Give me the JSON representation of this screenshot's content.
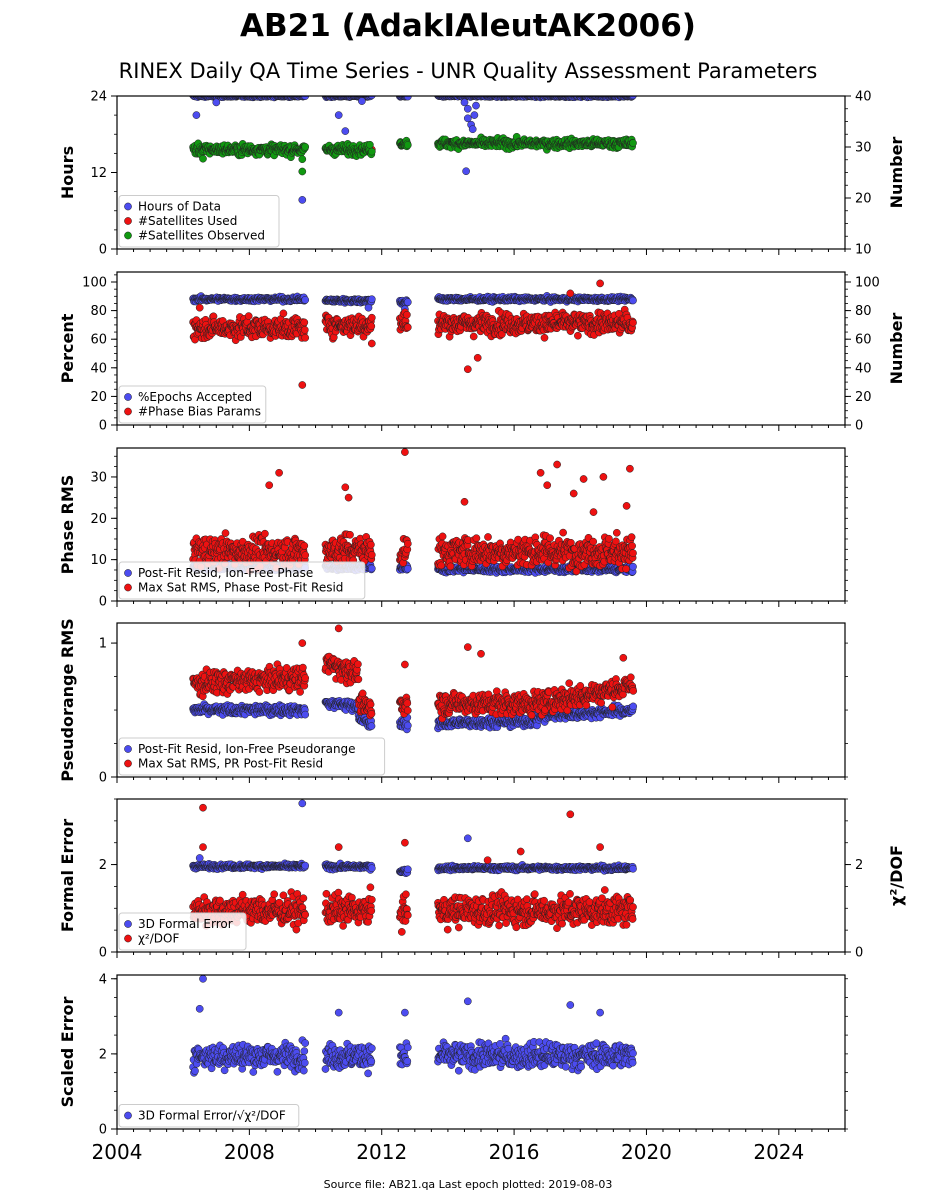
{
  "title": "AB21 (AdakIAleutAK2006)",
  "subtitle": "RINEX Daily QA Time Series - UNR Quality Assessment Parameters",
  "footer": "Source file: AB21.qa Last epoch plotted: 2019-08-03",
  "chart_data": [
    {
      "type": "scatter",
      "panel": "hours",
      "ylabel": "Hours",
      "y2label": "Number",
      "ylim": [
        0,
        24
      ],
      "yticks": [
        0,
        12,
        24
      ],
      "y2lim": [
        10,
        40
      ],
      "y2ticks": [
        10,
        20,
        30,
        40
      ],
      "legend_position": "lower-left",
      "series": [
        {
          "name": "Hours of Data",
          "color": "#4c4cf0",
          "axis": "left",
          "band": [
            [
              2006.3,
              2009.7,
              24,
              0.15
            ],
            [
              2010.3,
              2011.7,
              24,
              0.15
            ],
            [
              2012.55,
              2012.8,
              24,
              0.15
            ],
            [
              2013.7,
              2019.6,
              24,
              0.15
            ]
          ],
          "outliers": [
            [
              2006.4,
              21
            ],
            [
              2007.0,
              23
            ],
            [
              2009.6,
              7.7
            ],
            [
              2010.7,
              21
            ],
            [
              2010.9,
              18.5
            ],
            [
              2011.4,
              23.2
            ],
            [
              2014.5,
              23
            ],
            [
              2014.6,
              22
            ],
            [
              2014.6,
              20.5
            ],
            [
              2014.7,
              19.5
            ],
            [
              2014.75,
              18.8
            ],
            [
              2014.8,
              21
            ],
            [
              2014.85,
              22.5
            ],
            [
              2014.55,
              12.2
            ]
          ]
        },
        {
          "name": "#Satellites Used",
          "color": "#ee1111",
          "axis": "right",
          "band": [],
          "outliers": [
            [
              2011.7,
              29.5
            ]
          ]
        },
        {
          "name": "#Satellites Observed",
          "color": "#119911",
          "axis": "right",
          "band": [
            [
              2006.3,
              2009.7,
              29.5,
              0.8
            ],
            [
              2010.3,
              2011.7,
              29.5,
              0.8
            ],
            [
              2012.55,
              2012.8,
              30.7,
              0.5
            ],
            [
              2013.7,
              2019.6,
              30.7,
              0.7
            ]
          ],
          "outliers": [
            [
              2006.6,
              27.7
            ],
            [
              2009.6,
              27.6
            ],
            [
              2009.6,
              25.2
            ]
          ]
        }
      ]
    },
    {
      "type": "scatter",
      "panel": "percent",
      "ylabel": "Percent",
      "y2label": "Number",
      "ylim": [
        0,
        107
      ],
      "yticks": [
        0,
        20,
        40,
        60,
        80,
        100
      ],
      "y2ticks": [
        0,
        20,
        40,
        60,
        80,
        100
      ],
      "legend_position": "lower-left",
      "series": [
        {
          "name": "%Epochs Accepted",
          "color": "#4c4cf0",
          "axis": "left",
          "band": [
            [
              2006.3,
              2009.7,
              88,
              1.2
            ],
            [
              2010.3,
              2011.7,
              87,
              1.2
            ],
            [
              2012.55,
              2012.8,
              86,
              1.5
            ],
            [
              2013.7,
              2019.6,
              88,
              1.2
            ]
          ],
          "outliers": [
            [
              2011.6,
              82
            ],
            [
              2012.7,
              81
            ]
          ]
        },
        {
          "name": "#Phase Bias Params",
          "color": "#ee1111",
          "axis": "right",
          "band": [
            [
              2006.3,
              2009.7,
              68,
              6
            ],
            [
              2010.3,
              2011.7,
              70,
              6
            ],
            [
              2012.55,
              2012.8,
              72,
              7
            ],
            [
              2013.7,
              2019.6,
              71,
              6
            ]
          ],
          "outliers": [
            [
              2009.6,
              28
            ],
            [
              2014.6,
              39
            ],
            [
              2014.9,
              47
            ],
            [
              2018.6,
              99
            ],
            [
              2017.7,
              92
            ],
            [
              2006.5,
              82
            ],
            [
              2011.7,
              57
            ]
          ]
        }
      ]
    },
    {
      "type": "scatter",
      "panel": "phase-rms",
      "ylabel": "Phase RMS",
      "ylim": [
        0,
        37
      ],
      "yticks": [
        0,
        10,
        20,
        30
      ],
      "legend_position": "lower-left",
      "series": [
        {
          "name": "Post-Fit Resid, Ion-Free Phase",
          "color": "#4c4cf0",
          "axis": "left",
          "band": [
            [
              2006.3,
              2009.7,
              8.2,
              0.6
            ],
            [
              2010.3,
              2011.7,
              8.2,
              0.6
            ],
            [
              2012.55,
              2012.8,
              8.0,
              0.6
            ],
            [
              2013.7,
              2019.6,
              7.7,
              0.6
            ]
          ],
          "outliers": []
        },
        {
          "name": "Max Sat RMS, Phase Post-Fit Resid",
          "color": "#ee1111",
          "axis": "left",
          "band": [
            [
              2006.3,
              2009.7,
              12,
              3
            ],
            [
              2010.3,
              2011.7,
              12.5,
              3
            ],
            [
              2012.55,
              2012.8,
              12,
              3
            ],
            [
              2013.7,
              2019.6,
              12,
              3
            ]
          ],
          "outliers": [
            [
              2008.6,
              28
            ],
            [
              2008.9,
              31
            ],
            [
              2010.9,
              27.5
            ],
            [
              2011.0,
              25
            ],
            [
              2012.7,
              36
            ],
            [
              2014.5,
              24
            ],
            [
              2016.8,
              31
            ],
            [
              2017.3,
              33
            ],
            [
              2017.0,
              28
            ],
            [
              2017.8,
              26
            ],
            [
              2018.1,
              29.5
            ],
            [
              2018.7,
              30
            ],
            [
              2019.5,
              32
            ],
            [
              2018.4,
              21.5
            ],
            [
              2019.4,
              23
            ]
          ]
        }
      ]
    },
    {
      "type": "scatter",
      "panel": "pseudorange-rms",
      "ylabel": "Pseudorange RMS",
      "ylim": [
        0,
        1.15
      ],
      "yticks": [
        0,
        1
      ],
      "legend_position": "lower-left",
      "series": [
        {
          "name": "Post-Fit Resid, Ion-Free Pseudorange",
          "color": "#4c4cf0",
          "axis": "left",
          "segments": [
            [
              2006.3,
              2009.7,
              0.5,
              0.5,
              0.03
            ],
            [
              2010.3,
              2011.3,
              0.55,
              0.53,
              0.03
            ],
            [
              2011.3,
              2011.7,
              0.45,
              0.38,
              0.03
            ],
            [
              2012.55,
              2012.8,
              0.4,
              0.4,
              0.03
            ],
            [
              2013.7,
              2016.7,
              0.4,
              0.42,
              0.03
            ],
            [
              2016.7,
              2019.6,
              0.45,
              0.5,
              0.03
            ]
          ],
          "outliers": []
        },
        {
          "name": "Max Sat RMS, PR Post-Fit Resid",
          "color": "#ee1111",
          "axis": "left",
          "segments": [
            [
              2006.3,
              2009.7,
              0.7,
              0.74,
              0.07
            ],
            [
              2010.3,
              2011.3,
              0.85,
              0.78,
              0.07
            ],
            [
              2011.3,
              2011.7,
              0.55,
              0.5,
              0.06
            ],
            [
              2012.55,
              2012.8,
              0.55,
              0.55,
              0.07
            ],
            [
              2013.7,
              2016.7,
              0.55,
              0.55,
              0.07
            ],
            [
              2016.7,
              2019.6,
              0.55,
              0.68,
              0.07
            ]
          ],
          "outliers": [
            [
              2010.7,
              1.11
            ],
            [
              2012.7,
              0.84
            ],
            [
              2014.6,
              0.97
            ],
            [
              2015.0,
              0.92
            ],
            [
              2009.6,
              1.0
            ],
            [
              2019.3,
              0.89
            ]
          ]
        }
      ]
    },
    {
      "type": "scatter",
      "panel": "formal-error",
      "ylabel": "Formal Error",
      "y2label": "χ²/DOF",
      "ylim": [
        0,
        3.5
      ],
      "yticks": [
        0,
        2
      ],
      "y2ticks": [
        0,
        2
      ],
      "legend_position": "lower-left",
      "series": [
        {
          "name": "3D Formal Error",
          "color": "#4c4cf0",
          "axis": "left",
          "band": [
            [
              2006.3,
              2009.7,
              1.96,
              0.04
            ],
            [
              2010.3,
              2011.7,
              1.95,
              0.04
            ],
            [
              2012.55,
              2012.8,
              1.85,
              0.04
            ],
            [
              2013.7,
              2019.6,
              1.92,
              0.04
            ]
          ],
          "outliers": [
            [
              2009.6,
              3.4
            ],
            [
              2014.6,
              2.6
            ],
            [
              2006.5,
              2.15
            ]
          ]
        },
        {
          "name": "χ²/DOF",
          "color": "#ee1111",
          "axis": "right",
          "band": [
            [
              2006.3,
              2009.7,
              0.95,
              0.28
            ],
            [
              2010.3,
              2011.7,
              0.95,
              0.28
            ],
            [
              2012.55,
              2012.8,
              0.95,
              0.3
            ],
            [
              2013.7,
              2019.6,
              0.95,
              0.28
            ]
          ],
          "outliers": [
            [
              2006.6,
              3.3
            ],
            [
              2006.6,
              2.4
            ],
            [
              2010.7,
              2.4
            ],
            [
              2012.7,
              2.5
            ],
            [
              2017.7,
              3.15
            ],
            [
              2018.6,
              2.4
            ],
            [
              2016.2,
              2.3
            ],
            [
              2015.2,
              2.1
            ]
          ]
        }
      ]
    },
    {
      "type": "scatter",
      "panel": "scaled-error",
      "ylabel": "Scaled Error",
      "ylim": [
        0,
        4.1
      ],
      "yticks": [
        0,
        2,
        4
      ],
      "legend_position": "lower-left",
      "series": [
        {
          "name": "3D Formal Error/√χ²/DOF",
          "color": "#4c4cf0",
          "axis": "left",
          "band": [
            [
              2006.3,
              2009.7,
              1.95,
              0.28
            ],
            [
              2010.3,
              2011.7,
              1.95,
              0.28
            ],
            [
              2012.55,
              2012.8,
              1.9,
              0.3
            ],
            [
              2013.7,
              2019.6,
              1.95,
              0.28
            ]
          ],
          "outliers": [
            [
              2006.6,
              4.0
            ],
            [
              2006.5,
              3.2
            ],
            [
              2014.6,
              3.4
            ],
            [
              2017.7,
              3.3
            ],
            [
              2018.6,
              3.1
            ],
            [
              2012.7,
              3.1
            ],
            [
              2010.7,
              3.1
            ]
          ]
        }
      ]
    }
  ],
  "x_axis": {
    "xlim": [
      2004,
      2026
    ],
    "ticks": [
      "2004",
      "2008",
      "2012",
      "2016",
      "2020",
      "2024"
    ]
  }
}
